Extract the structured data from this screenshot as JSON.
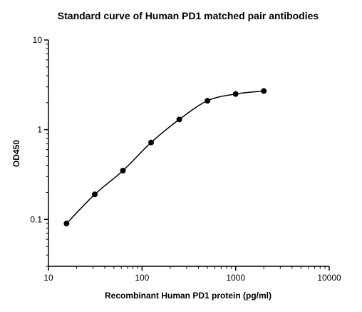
{
  "chart_data": {
    "type": "scatter",
    "title": "Standard curve of Human PD1 matched pair antibodies",
    "xlabel": "Recombinant Human PD1 protein (pg/ml)",
    "ylabel": "OD450",
    "x_scale": "log",
    "y_scale": "log",
    "xlim": [
      10,
      10000
    ],
    "ylim": [
      0.03,
      10
    ],
    "x_ticks": [
      "10",
      "100",
      "1000",
      "10000"
    ],
    "y_ticks": [
      "0.1",
      "1",
      "10"
    ],
    "grid": false,
    "legend": "none",
    "series": [
      {
        "marker": "filled-circle",
        "color": "#000000",
        "points": [
          {
            "x": 15.6,
            "y": 0.09
          },
          {
            "x": 31.25,
            "y": 0.19
          },
          {
            "x": 62.5,
            "y": 0.35
          },
          {
            "x": 125,
            "y": 0.72
          },
          {
            "x": 250,
            "y": 1.3
          },
          {
            "x": 500,
            "y": 2.1
          },
          {
            "x": 1000,
            "y": 2.5
          },
          {
            "x": 2000,
            "y": 2.7
          }
        ],
        "fit_curve": "sigmoidal"
      }
    ]
  }
}
